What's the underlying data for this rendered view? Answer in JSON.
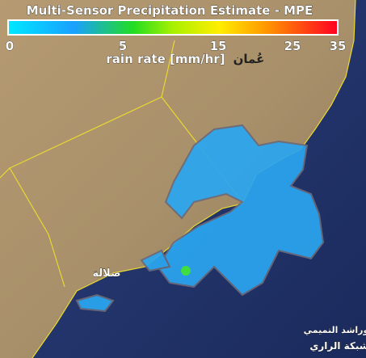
{
  "title": "Multi-Sensor Precipitation Estimate - MPE",
  "colorbar": {
    "ticks": [
      0,
      5,
      15,
      25,
      35
    ],
    "label": "rain rate [mm/hr]"
  },
  "places": {
    "oman": "عُمان",
    "salalah": "صلالة"
  },
  "watermark": [
    "ابوراشد التميمي",
    "شبكة الراري"
  ]
}
